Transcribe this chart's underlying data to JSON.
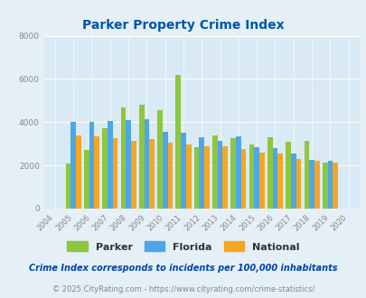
{
  "title": "Parker Property Crime Index",
  "years": [
    2004,
    2005,
    2006,
    2007,
    2008,
    2009,
    2010,
    2011,
    2012,
    2013,
    2014,
    2015,
    2016,
    2017,
    2018,
    2019,
    2020
  ],
  "parker": [
    0,
    2100,
    2700,
    3700,
    4700,
    4800,
    4550,
    6200,
    2850,
    3400,
    3250,
    2950,
    3300,
    3100,
    3150,
    2150,
    0
  ],
  "florida": [
    0,
    4000,
    4000,
    4050,
    4100,
    4150,
    3550,
    3500,
    3300,
    3150,
    3350,
    2850,
    2800,
    2550,
    2250,
    2200,
    0
  ],
  "national": [
    0,
    3400,
    3350,
    3250,
    3150,
    3200,
    3050,
    2950,
    2900,
    2900,
    2750,
    2600,
    2550,
    2300,
    2200,
    2150,
    0
  ],
  "parker_color": "#8dc63f",
  "florida_color": "#4da6e8",
  "national_color": "#f5a623",
  "bg_color": "#e4f0f6",
  "plot_bg": "#daeaf4",
  "title_color": "#0055aa",
  "ylim": [
    0,
    8000
  ],
  "yticks": [
    0,
    2000,
    4000,
    6000,
    8000
  ],
  "tick_color": "#888888",
  "footnote1": "Crime Index corresponds to incidents per 100,000 inhabitants",
  "footnote2": "© 2025 CityRating.com - https://www.cityrating.com/crime-statistics/",
  "footnote1_color": "#0044aa",
  "footnote2_color": "#888888",
  "legend_text_color": "#333333"
}
